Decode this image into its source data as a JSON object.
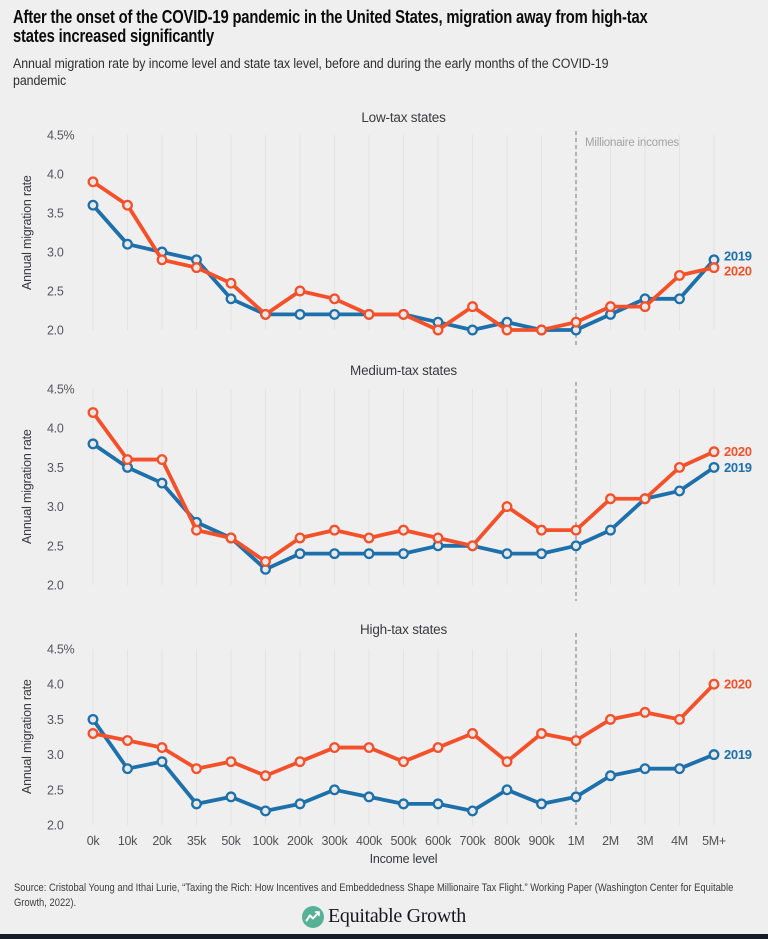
{
  "header": {
    "title_lines": [
      "After the onset of the COVID-19 pandemic in the United States, migration away from high-tax",
      "states increased significantly"
    ],
    "subtitle_lines": [
      "Annual migration rate by income level and state tax level, before and during the early months of the COVID-19",
      "pandemic"
    ]
  },
  "axis": {
    "ylabel": "Annual migration rate",
    "xlabel": "Income level",
    "yticks": [
      {
        "label": "4.5%",
        "value": 4.5
      },
      {
        "label": "4.0",
        "value": 4.0
      },
      {
        "label": "3.5",
        "value": 3.5
      },
      {
        "label": "3.0",
        "value": 3.0
      },
      {
        "label": "2.5",
        "value": 2.5
      },
      {
        "label": "2.0",
        "value": 2.0
      }
    ],
    "categories": [
      "0k",
      "10k",
      "20k",
      "35k",
      "50k",
      "100k",
      "200k",
      "300k",
      "400k",
      "500k",
      "600k",
      "700k",
      "800k",
      "900k",
      "1M",
      "2M",
      "3M",
      "4M",
      "5M+"
    ]
  },
  "annotation": {
    "label": "Millionaire incomes",
    "category": "1M"
  },
  "colors": {
    "blue_2019": "#1d70a9",
    "orange_2020": "#f4502a",
    "background": "#efeff0",
    "gridline": "#e3e3e5",
    "dashed_line": "#9b9b9b"
  },
  "chart_data": [
    {
      "type": "line",
      "title": "Low-tax states",
      "ylim": [
        2.0,
        4.5
      ],
      "categories": [
        "0k",
        "10k",
        "20k",
        "35k",
        "50k",
        "100k",
        "200k",
        "300k",
        "400k",
        "500k",
        "600k",
        "700k",
        "800k",
        "900k",
        "1M",
        "2M",
        "3M",
        "4M",
        "5M+"
      ],
      "series": [
        {
          "name": "2019",
          "color": "#1d70a9",
          "values": [
            3.6,
            3.1,
            3.0,
            2.9,
            2.4,
            2.2,
            2.2,
            2.2,
            2.2,
            2.2,
            2.1,
            2.0,
            2.1,
            2.0,
            2.0,
            2.2,
            2.4,
            2.4,
            2.9
          ]
        },
        {
          "name": "2020",
          "color": "#f4502a",
          "values": [
            3.9,
            3.6,
            2.9,
            2.8,
            2.6,
            2.2,
            2.5,
            2.4,
            2.2,
            2.2,
            2.0,
            2.3,
            2.0,
            2.0,
            2.1,
            2.3,
            2.3,
            2.7,
            2.8
          ]
        }
      ]
    },
    {
      "type": "line",
      "title": "Medium-tax states",
      "ylim": [
        2.0,
        4.5
      ],
      "categories": [
        "0k",
        "10k",
        "20k",
        "35k",
        "50k",
        "100k",
        "200k",
        "300k",
        "400k",
        "500k",
        "600k",
        "700k",
        "800k",
        "900k",
        "1M",
        "2M",
        "3M",
        "4M",
        "5M+"
      ],
      "series": [
        {
          "name": "2019",
          "color": "#1d70a9",
          "values": [
            3.8,
            3.5,
            3.3,
            2.8,
            2.6,
            2.2,
            2.4,
            2.4,
            2.4,
            2.4,
            2.5,
            2.5,
            2.4,
            2.4,
            2.5,
            2.7,
            3.1,
            3.2,
            3.5
          ]
        },
        {
          "name": "2020",
          "color": "#f4502a",
          "values": [
            4.2,
            3.6,
            3.6,
            2.7,
            2.6,
            2.3,
            2.6,
            2.7,
            2.6,
            2.7,
            2.6,
            2.5,
            3.0,
            2.7,
            2.7,
            3.1,
            3.1,
            3.5,
            3.7
          ]
        }
      ]
    },
    {
      "type": "line",
      "title": "High-tax states",
      "ylim": [
        2.0,
        4.5
      ],
      "categories": [
        "0k",
        "10k",
        "20k",
        "35k",
        "50k",
        "100k",
        "200k",
        "300k",
        "400k",
        "500k",
        "600k",
        "700k",
        "800k",
        "900k",
        "1M",
        "2M",
        "3M",
        "4M",
        "5M+"
      ],
      "series": [
        {
          "name": "2019",
          "color": "#1d70a9",
          "values": [
            3.5,
            2.8,
            2.9,
            2.3,
            2.4,
            2.2,
            2.3,
            2.5,
            2.4,
            2.3,
            2.3,
            2.2,
            2.5,
            2.3,
            2.4,
            2.7,
            2.8,
            2.8,
            3.0
          ]
        },
        {
          "name": "2020",
          "color": "#f4502a",
          "values": [
            3.3,
            3.2,
            3.1,
            2.8,
            2.9,
            2.7,
            2.9,
            3.1,
            3.1,
            2.9,
            3.1,
            3.3,
            2.9,
            3.3,
            3.2,
            3.5,
            3.6,
            3.5,
            4.0
          ]
        }
      ]
    }
  ],
  "footer": {
    "source_lines": [
      "Source: Cristobal Young and Ithai Lurie, “Taxing the Rich: How Incentives and Embeddedness Shape Millionaire Tax Flight.” Working Paper (Washington Center for Equitable",
      "Growth, 2022)."
    ],
    "logo_text": "Equitable Growth"
  }
}
